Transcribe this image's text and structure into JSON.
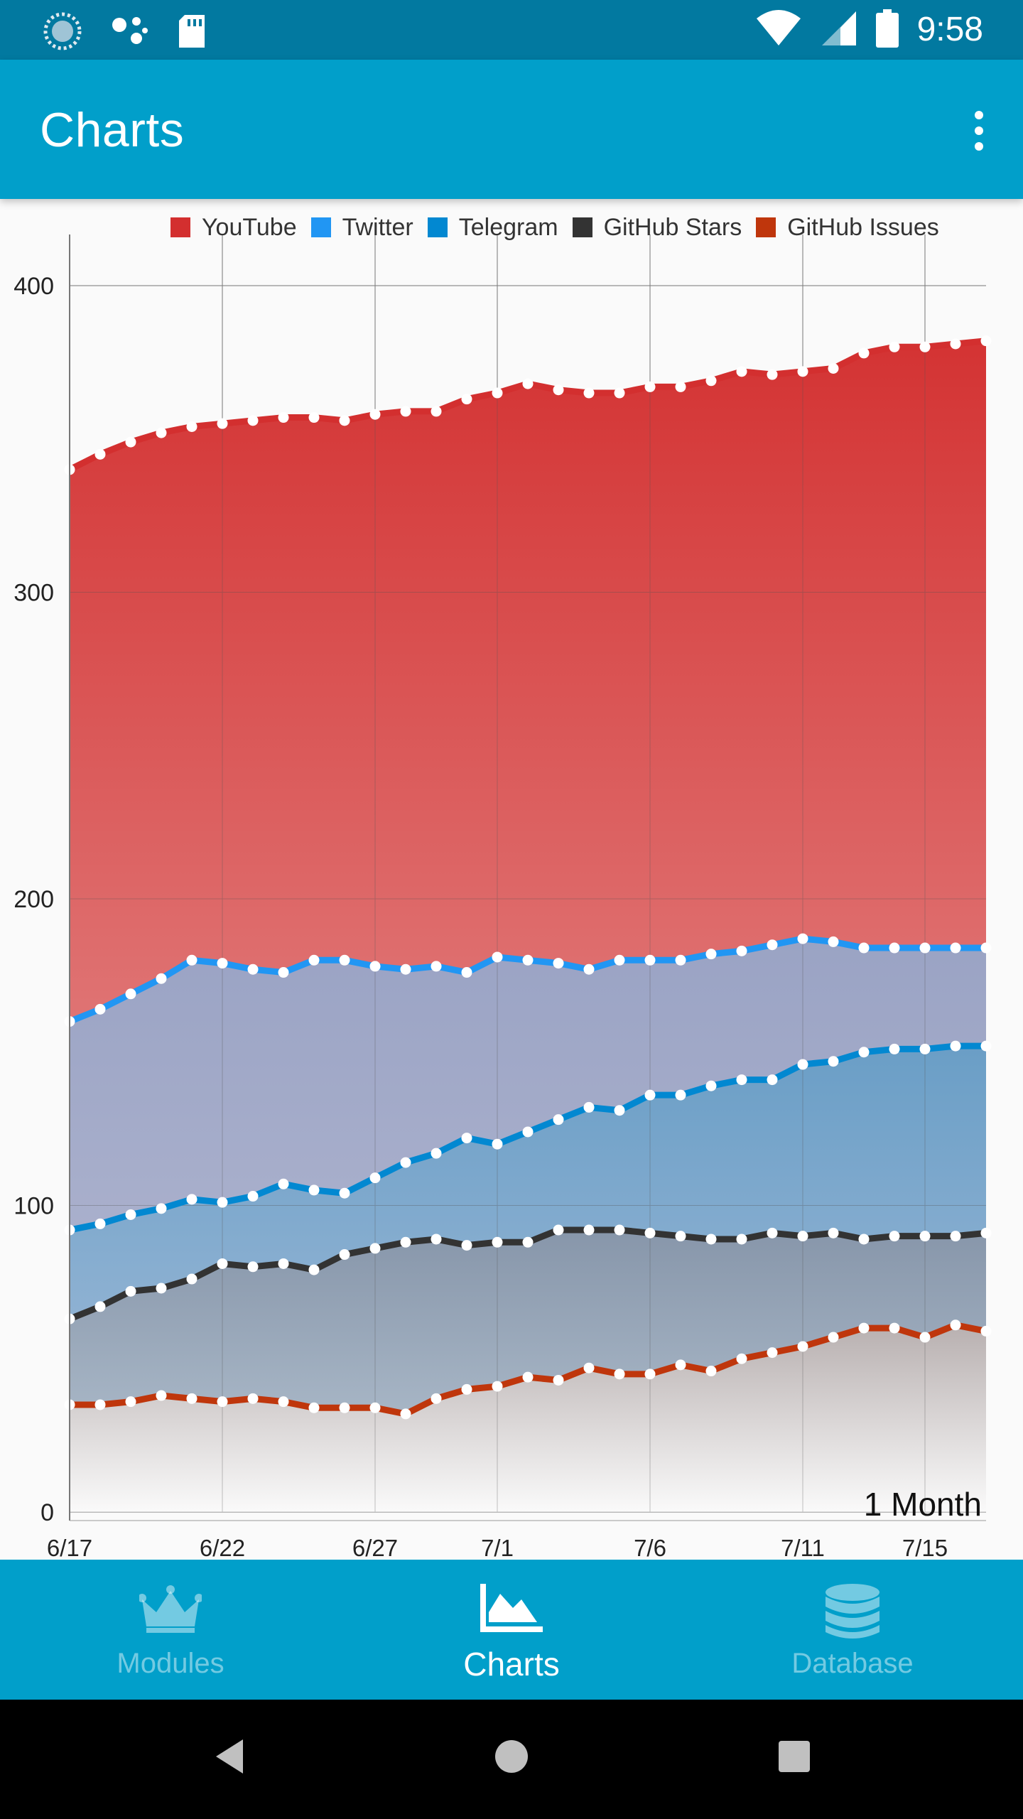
{
  "status_bar": {
    "time": "9:58",
    "icons_left": [
      "sync-icon",
      "assistant-icon",
      "sd-card-icon"
    ],
    "icons_right": [
      "wifi-icon",
      "signal-icon",
      "battery-icon"
    ]
  },
  "app_bar": {
    "title": "Charts",
    "menu_icon": "more-vert-icon"
  },
  "chart_data": {
    "type": "area",
    "stacked": true,
    "x": [
      "6/17",
      "6/18",
      "6/19",
      "6/20",
      "6/21",
      "6/22",
      "6/23",
      "6/24",
      "6/25",
      "6/26",
      "6/27",
      "6/28",
      "6/29",
      "6/30",
      "7/1",
      "7/2",
      "7/3",
      "7/4",
      "7/5",
      "7/6",
      "7/7",
      "7/8",
      "7/9",
      "7/10",
      "7/11",
      "7/12",
      "7/13",
      "7/14",
      "7/15",
      "7/16",
      "7/17"
    ],
    "x_tick_labels": [
      "6/17",
      "6/22",
      "6/27",
      "7/1",
      "7/6",
      "7/11",
      "7/15"
    ],
    "y_tick_labels": [
      "0",
      "100",
      "200",
      "300",
      "400"
    ],
    "ylim": [
      0,
      400
    ],
    "grid": true,
    "legend_position": "top-right",
    "annotation": "1 Month",
    "series": [
      {
        "name": "YouTube",
        "color": "#d32f2f",
        "cumulative_values": [
          340,
          345,
          349,
          352,
          354,
          355,
          356,
          357,
          357,
          356,
          358,
          359,
          359,
          363,
          365,
          368,
          366,
          365,
          365,
          367,
          367,
          369,
          372,
          371,
          372,
          373,
          378,
          380,
          380,
          381,
          382
        ]
      },
      {
        "name": "Twitter",
        "color": "#2196f3",
        "cumulative_values": [
          160,
          164,
          169,
          174,
          180,
          179,
          177,
          176,
          180,
          180,
          178,
          177,
          178,
          176,
          181,
          180,
          179,
          177,
          180,
          180,
          180,
          182,
          183,
          185,
          187,
          186,
          184,
          184,
          184,
          184,
          184
        ]
      },
      {
        "name": "Telegram",
        "color": "#0288d1",
        "cumulative_values": [
          92,
          94,
          97,
          99,
          102,
          101,
          103,
          107,
          105,
          104,
          109,
          114,
          117,
          122,
          120,
          124,
          128,
          132,
          131,
          136,
          136,
          139,
          141,
          141,
          146,
          147,
          150,
          151,
          151,
          152,
          152
        ]
      },
      {
        "name": "GitHub Stars",
        "color": "#333333",
        "cumulative_values": [
          63,
          67,
          72,
          73,
          76,
          81,
          80,
          81,
          79,
          84,
          86,
          88,
          89,
          87,
          88,
          88,
          92,
          92,
          92,
          91,
          90,
          89,
          89,
          91,
          90,
          91,
          89,
          90,
          90,
          90,
          91
        ]
      },
      {
        "name": "GitHub Issues",
        "color": "#bf360c",
        "cumulative_values": [
          35,
          35,
          36,
          38,
          37,
          36,
          37,
          36,
          34,
          34,
          34,
          32,
          37,
          40,
          41,
          44,
          43,
          47,
          45,
          45,
          48,
          46,
          50,
          52,
          54,
          57,
          60,
          60,
          57,
          61,
          59
        ]
      }
    ]
  },
  "bottom_nav": {
    "items": [
      {
        "label": "Modules",
        "icon": "crown-icon",
        "active": false
      },
      {
        "label": "Charts",
        "icon": "area-chart-icon",
        "active": true
      },
      {
        "label": "Database",
        "icon": "database-icon",
        "active": false
      }
    ]
  },
  "system_nav": [
    "back-icon",
    "home-icon",
    "recents-icon"
  ]
}
